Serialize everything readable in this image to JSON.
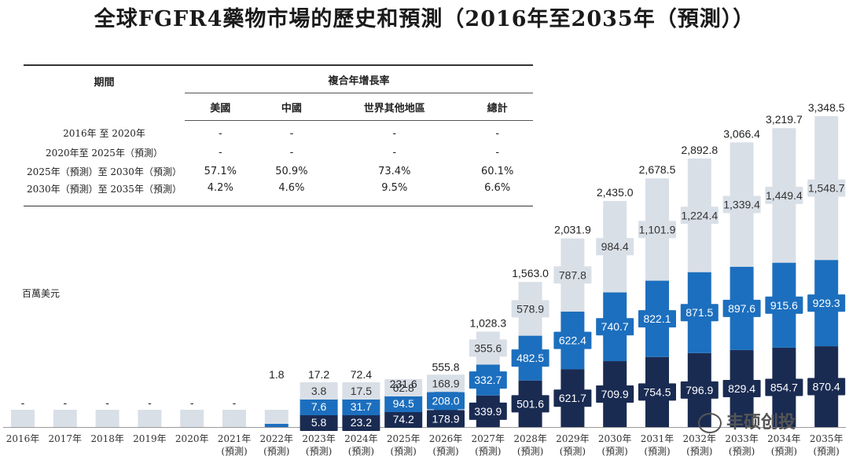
{
  "title": "全球FGFR4藥物市場的歷史和預測（2016年至2035年（預測））",
  "unit_label": "百萬美元",
  "watermark": "丰硕创投",
  "colors": {
    "us": "#1a2b52",
    "china": "#1c6fbe",
    "row": "#d9dfe7",
    "total_box": "#e4e8ed"
  },
  "table": {
    "header_period": "期間",
    "header_cagr": "複合年增長率",
    "columns": [
      "美國",
      "中國",
      "世界其他地區",
      "總計"
    ],
    "rows": [
      {
        "period": "2016年 至 2020年",
        "values": [
          "-",
          "-",
          "-",
          "-"
        ]
      },
      {
        "period": "2020年至 2025年（預測）",
        "values": [
          "-",
          "-",
          "-",
          "-"
        ]
      },
      {
        "period": "2025年（預測）至 2030年（預測）",
        "values": [
          "57.1%",
          "50.9%",
          "73.4%",
          "60.1%"
        ]
      },
      {
        "period": "2030年（預測）至 2035年（預測）",
        "values": [
          "4.2%",
          "4.6%",
          "9.5%",
          "6.6%"
        ]
      }
    ]
  },
  "chart_data": {
    "type": "bar",
    "stacked": true,
    "title": "全球FGFR4藥物市場的歷史和預測（2016年至2035年（預測））",
    "ylabel": "百萬美元",
    "xlabel": "",
    "categories": [
      "2016年",
      "2017年",
      "2018年",
      "2019年",
      "2020年",
      "2021年",
      "2022年",
      "2023年",
      "2024年",
      "2025年",
      "2026年",
      "2027年",
      "2028年",
      "2029年",
      "2030年",
      "2031年",
      "2032年",
      "2033年",
      "2034年",
      "2035年"
    ],
    "forecast_suffix": [
      "",
      "",
      "",
      "",
      "",
      "(預測)",
      "(預測)",
      "(預測)",
      "(預測)",
      "(預測)",
      "(預測)",
      "(預測)",
      "(預測)",
      "(預測)",
      "(預測)",
      "(預測)",
      "(預測)",
      "(預測)",
      "(預測)",
      "(預測)"
    ],
    "series": [
      {
        "name": "美國",
        "values": [
          0,
          0,
          0,
          0,
          0,
          0,
          0,
          5.8,
          23.2,
          74.2,
          178.9,
          339.9,
          501.6,
          621.7,
          709.9,
          754.5,
          796.9,
          829.4,
          854.7,
          870.4
        ],
        "labels": [
          "",
          "",
          "",
          "",
          "",
          "",
          "",
          "5.8",
          "23.2",
          "74.2",
          "178.9",
          "339.9",
          "501.6",
          "621.7",
          "709.9",
          "754.5",
          "796.9",
          "829.4",
          "854.7",
          "870.4"
        ]
      },
      {
        "name": "中國",
        "values": [
          0,
          0,
          0,
          0,
          0,
          0,
          1.8,
          7.6,
          31.7,
          94.5,
          208.0,
          332.7,
          482.5,
          622.4,
          740.7,
          822.1,
          871.5,
          897.6,
          915.6,
          929.3
        ],
        "labels": [
          "",
          "",
          "",
          "",
          "",
          "",
          "",
          "7.6",
          "31.7",
          "94.5",
          "208.0",
          "332.7",
          "482.5",
          "622.4",
          "740.7",
          "822.1",
          "871.5",
          "897.6",
          "915.6",
          "929.3"
        ]
      },
      {
        "name": "世界其他地區",
        "values": [
          0,
          0,
          0,
          0,
          0,
          0,
          0,
          3.8,
          17.5,
          62.8,
          168.9,
          355.6,
          578.9,
          787.8,
          984.4,
          1101.9,
          1224.4,
          1339.4,
          1449.4,
          1548.7
        ],
        "labels": [
          "",
          "",
          "",
          "",
          "",
          "",
          "",
          "3.8",
          "17.5",
          "62.8",
          "168.9",
          "355.6",
          "578.9",
          "787.8",
          "984.4",
          "1,101.9",
          "1,224.4",
          "1,339.4",
          "1,449.4",
          "1,548.7"
        ]
      }
    ],
    "totals": [
      0,
      0,
      0,
      0,
      0,
      0,
      1.8,
      17.2,
      72.4,
      231.6,
      555.8,
      1028.3,
      1563.0,
      2031.9,
      2435.0,
      2678.5,
      2892.8,
      3066.4,
      3219.7,
      3348.5
    ],
    "total_labels": [
      "-",
      "-",
      "-",
      "-",
      "-",
      "-",
      "1.8",
      "17.2",
      "72.4",
      "231.6",
      "555.8",
      "1,028.3",
      "1,563.0",
      "2,031.9",
      "2,435.0",
      "2,678.5",
      "2,892.8",
      "3,066.4",
      "3,219.7",
      "3,348.5"
    ],
    "ylim": [
      0,
      3348.5
    ],
    "legend": "none",
    "grid": false
  }
}
